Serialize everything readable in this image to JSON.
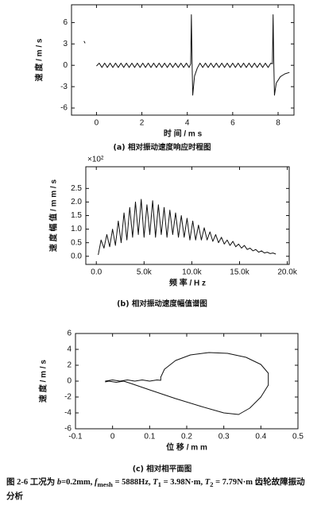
{
  "chart_data": [
    {
      "type": "line",
      "caption": "(a) 相对振动速度响应时程图",
      "xlabel": "时 间 / m s",
      "ylabel": "速 度 / m / s",
      "color": "#111111",
      "xlim": [
        -1.1,
        8.7
      ],
      "ylim": [
        -7,
        8.5
      ],
      "xticks": [
        0,
        2,
        4,
        6,
        8
      ],
      "yticks": [
        -6,
        -3,
        0,
        3,
        6
      ],
      "x": [
        -0.55,
        -0.5,
        -0.3,
        0,
        0.12,
        0.24,
        0.36,
        0.48,
        0.6,
        0.72,
        0.84,
        0.96,
        1.08,
        1.2,
        1.32,
        1.44,
        1.56,
        1.68,
        1.8,
        1.92,
        2.04,
        2.16,
        2.28,
        2.4,
        2.52,
        2.64,
        2.76,
        2.88,
        3.0,
        3.12,
        3.24,
        3.36,
        3.48,
        3.6,
        3.72,
        3.84,
        3.96,
        4.08,
        4.15,
        4.18,
        4.21,
        4.24,
        4.32,
        4.44,
        4.56,
        4.68,
        4.8,
        4.92,
        5.04,
        5.16,
        5.28,
        5.4,
        5.52,
        5.64,
        5.76,
        5.88,
        6.0,
        6.12,
        6.24,
        6.36,
        6.48,
        6.6,
        6.72,
        6.84,
        6.96,
        7.08,
        7.2,
        7.32,
        7.44,
        7.56,
        7.68,
        7.75,
        7.78,
        7.81,
        7.84,
        7.92,
        8.1,
        8.3,
        8.5
      ],
      "values": [
        3.4,
        3.1,
        null,
        -0.1,
        0.3,
        -0.3,
        0.3,
        -0.3,
        0.3,
        -0.3,
        0.3,
        -0.3,
        0.3,
        -0.3,
        0.3,
        -0.3,
        0.3,
        -0.3,
        0.3,
        -0.3,
        0.3,
        -0.3,
        0.3,
        -0.3,
        0.3,
        -0.3,
        0.3,
        -0.3,
        0.3,
        -0.3,
        0.3,
        -0.3,
        0.3,
        -0.3,
        0.3,
        -0.3,
        0.3,
        -0.3,
        0.2,
        7.1,
        0.5,
        -4.2,
        -1.5,
        -0.4,
        0.3,
        -0.3,
        0.3,
        -0.3,
        0.3,
        -0.3,
        0.3,
        -0.3,
        0.3,
        -0.3,
        0.3,
        -0.3,
        0.3,
        -0.3,
        0.3,
        -0.3,
        0.3,
        -0.3,
        0.3,
        -0.3,
        0.3,
        -0.3,
        0.3,
        -0.3,
        0.3,
        -0.3,
        0.3,
        0.2,
        7.1,
        0.5,
        -4.2,
        -2.5,
        -1.6,
        -1.2,
        -1.0
      ]
    },
    {
      "type": "line",
      "caption": "(b) 相对振动速度幅值谱图",
      "xlabel": "频 率 / H z",
      "ylabel": "速 度 幅 值 / m m / s",
      "annotation": "×10²",
      "color": "#111111",
      "xlim": [
        -1100,
        20200
      ],
      "ylim": [
        -0.3,
        3.3
      ],
      "xticks": [
        {
          "value": 0,
          "label": "0.0"
        },
        {
          "value": 5000,
          "label": "5.0k"
        },
        {
          "value": 10000,
          "label": "10.0k"
        },
        {
          "value": 15000,
          "label": "15.0k"
        },
        {
          "value": 20000,
          "label": "20.0k"
        }
      ],
      "yticks": [
        {
          "value": 0,
          "label": "0.0"
        },
        0.5,
        {
          "value": 1,
          "label": "1.0"
        },
        1.5,
        {
          "value": 2,
          "label": "2.0"
        },
        2.5
      ],
      "x": [
        200,
        500,
        800,
        1100,
        1400,
        1700,
        2000,
        2300,
        2600,
        2900,
        3200,
        3500,
        3800,
        4100,
        4400,
        4700,
        5000,
        5300,
        5600,
        5900,
        6200,
        6500,
        6800,
        7100,
        7400,
        7700,
        8000,
        8300,
        8600,
        8900,
        9200,
        9500,
        9800,
        10100,
        10400,
        10700,
        11000,
        11300,
        11600,
        11900,
        12200,
        12500,
        12800,
        13100,
        13400,
        13700,
        14000,
        14300,
        14600,
        14900,
        15200,
        15500,
        15800,
        16100,
        16400,
        16700,
        17000,
        17300,
        17600,
        17900,
        18200,
        18500,
        18800
      ],
      "values": [
        0.05,
        0.6,
        0.3,
        0.8,
        0.35,
        1.0,
        0.4,
        1.3,
        0.5,
        1.6,
        0.6,
        1.8,
        0.7,
        2.0,
        0.8,
        2.1,
        0.7,
        1.9,
        0.8,
        2.05,
        0.7,
        1.9,
        0.8,
        1.8,
        0.7,
        1.7,
        0.8,
        1.6,
        0.7,
        1.5,
        0.7,
        1.4,
        0.6,
        1.3,
        0.6,
        1.15,
        0.6,
        1.05,
        0.6,
        0.9,
        0.55,
        0.8,
        0.5,
        0.7,
        0.45,
        0.6,
        0.4,
        0.55,
        0.35,
        0.45,
        0.3,
        0.4,
        0.25,
        0.3,
        0.2,
        0.25,
        0.15,
        0.2,
        0.12,
        0.15,
        0.1,
        0.12,
        0.08
      ]
    },
    {
      "type": "line",
      "caption": "(c) 相对相平面图",
      "xlabel": "位 移 / m m",
      "ylabel": "速 度 / m / s",
      "color": "#111111",
      "xlim": [
        -0.1,
        0.5
      ],
      "ylim": [
        -6,
        6
      ],
      "xticks": [
        -0.1,
        0,
        0.1,
        0.2,
        0.3,
        0.4,
        0.5
      ],
      "yticks": [
        -6,
        -4,
        -2,
        0,
        2,
        4,
        6
      ],
      "x": [
        -0.02,
        0.0,
        0.02,
        0.04,
        0.06,
        0.08,
        0.1,
        0.12,
        0.13,
        0.13,
        0.14,
        0.17,
        0.21,
        0.26,
        0.31,
        0.36,
        0.4,
        0.42,
        0.42,
        0.4,
        0.37,
        0.34,
        0.3,
        0.24,
        0.17,
        0.1,
        0.05,
        0.03,
        0.01,
        -0.01,
        -0.02
      ],
      "values": [
        0,
        0.15,
        0,
        0.15,
        0,
        0.15,
        0,
        0.15,
        0.1,
        0.5,
        1.5,
        2.6,
        3.3,
        3.6,
        3.5,
        3.0,
        2.1,
        1.0,
        -0.5,
        -2.0,
        -3.4,
        -4.2,
        -4.0,
        -3.2,
        -2.2,
        -1.1,
        -0.3,
        0,
        -0.15,
        0,
        -0.1
      ]
    }
  ],
  "figure_caption": [
    "图 2-6 工况为 ",
    "b",
    "=0.2mm, ",
    "f",
    "mesh",
    " = 5888Hz, ",
    "T",
    "1",
    " = 3.98N·m, ",
    "T",
    "2",
    " = 7.79N·m 齿轮故障振动分析"
  ]
}
